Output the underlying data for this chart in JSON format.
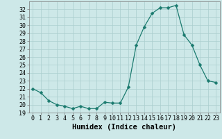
{
  "x": [
    0,
    1,
    2,
    3,
    4,
    5,
    6,
    7,
    8,
    9,
    10,
    11,
    12,
    13,
    14,
    15,
    16,
    17,
    18,
    19,
    20,
    21,
    22,
    23
  ],
  "y": [
    22.0,
    21.5,
    20.5,
    20.0,
    19.8,
    19.5,
    19.8,
    19.5,
    19.5,
    20.3,
    20.2,
    20.2,
    22.2,
    27.5,
    29.8,
    31.5,
    32.2,
    32.2,
    32.5,
    28.8,
    27.5,
    25.0,
    23.0,
    22.8
  ],
  "line_color": "#1a7a6e",
  "marker": "D",
  "marker_size": 2.5,
  "bg_color": "#cde8e8",
  "grid_color": "#aacece",
  "xlabel": "Humidex (Indice chaleur)",
  "xlim": [
    -0.5,
    23.5
  ],
  "ylim": [
    19,
    33
  ],
  "yticks": [
    19,
    20,
    21,
    22,
    23,
    24,
    25,
    26,
    27,
    28,
    29,
    30,
    31,
    32
  ],
  "xtick_labels": [
    "0",
    "1",
    "2",
    "3",
    "4",
    "5",
    "6",
    "7",
    "8",
    "9",
    "10",
    "11",
    "12",
    "13",
    "14",
    "15",
    "16",
    "17",
    "18",
    "19",
    "20",
    "21",
    "22",
    "23"
  ],
  "tick_fontsize": 6,
  "label_fontsize": 7.5
}
